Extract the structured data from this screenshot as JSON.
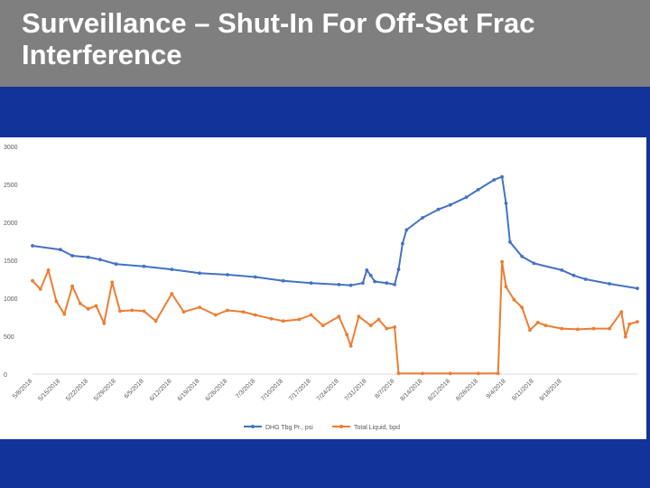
{
  "slide": {
    "title": "Surveillance – Shut-In For Off-Set Frac Interference"
  },
  "colors": {
    "title_bar": "#7f7f7f",
    "background": "#123399",
    "series_tubing": "#4472c4",
    "series_liquid": "#ed7d31"
  },
  "chart_data": {
    "type": "line",
    "title": "",
    "xlabel": "",
    "ylabel": "",
    "ylim": [
      0,
      3000
    ],
    "y_ticks": [
      0,
      500,
      1000,
      1500,
      2000,
      2500,
      3000
    ],
    "y_tick_labels": [
      "0",
      "500",
      "1000",
      "1500",
      "2000",
      "2500",
      "3000"
    ],
    "x_tick_labels": [
      "5/8/2018",
      "5/15/2018",
      "5/22/2018",
      "5/29/2018",
      "6/5/2018",
      "6/12/2018",
      "6/19/2018",
      "6/26/2018",
      "7/3/2018",
      "7/10/2018",
      "7/17/2018",
      "7/24/2018",
      "7/31/2018",
      "8/7/2018",
      "8/14/2018",
      "8/21/2018",
      "8/28/2018",
      "9/4/2018",
      "9/11/2018",
      "9/18/2018"
    ],
    "x_range": [
      "5/8/2018",
      "9/25/2018"
    ],
    "grid": false,
    "legend_position": "bottom",
    "series": [
      {
        "name": "DHG Tbg Pr., psi",
        "points": [
          [
            "5/8/2018",
            1690
          ],
          [
            "5/15/2018",
            1640
          ],
          [
            "5/18/2018",
            1560
          ],
          [
            "5/22/2018",
            1540
          ],
          [
            "5/25/2018",
            1510
          ],
          [
            "5/29/2018",
            1450
          ],
          [
            "6/5/2018",
            1420
          ],
          [
            "6/12/2018",
            1380
          ],
          [
            "6/19/2018",
            1330
          ],
          [
            "6/26/2018",
            1310
          ],
          [
            "7/3/2018",
            1280
          ],
          [
            "7/10/2018",
            1230
          ],
          [
            "7/17/2018",
            1200
          ],
          [
            "7/24/2018",
            1180
          ],
          [
            "7/27/2018",
            1170
          ],
          [
            "7/30/2018",
            1200
          ],
          [
            "7/31/2018",
            1370
          ],
          [
            "8/1/2018",
            1300
          ],
          [
            "8/2/2018",
            1220
          ],
          [
            "8/5/2018",
            1200
          ],
          [
            "8/7/2018",
            1180
          ],
          [
            "8/8/2018",
            1380
          ],
          [
            "8/9/2018",
            1720
          ],
          [
            "8/10/2018",
            1900
          ],
          [
            "8/14/2018",
            2060
          ],
          [
            "8/18/2018",
            2170
          ],
          [
            "8/21/2018",
            2230
          ],
          [
            "8/25/2018",
            2330
          ],
          [
            "8/28/2018",
            2430
          ],
          [
            "9/1/2018",
            2560
          ],
          [
            "9/3/2018",
            2600
          ],
          [
            "9/4/2018",
            2250
          ],
          [
            "9/5/2018",
            1740
          ],
          [
            "9/8/2018",
            1550
          ],
          [
            "9/11/2018",
            1460
          ],
          [
            "9/18/2018",
            1370
          ],
          [
            "9/21/2018",
            1300
          ],
          [
            "9/24/2018",
            1250
          ],
          [
            "9/30/2018",
            1190
          ],
          [
            "10/7/2018",
            1130
          ]
        ]
      },
      {
        "name": "Total Liquid, bpd",
        "points": [
          [
            "5/8/2018",
            1230
          ],
          [
            "5/10/2018",
            1120
          ],
          [
            "5/12/2018",
            1370
          ],
          [
            "5/14/2018",
            960
          ],
          [
            "5/16/2018",
            790
          ],
          [
            "5/18/2018",
            1160
          ],
          [
            "5/20/2018",
            930
          ],
          [
            "5/22/2018",
            860
          ],
          [
            "5/24/2018",
            900
          ],
          [
            "5/26/2018",
            670
          ],
          [
            "5/28/2018",
            1210
          ],
          [
            "5/30/2018",
            830
          ],
          [
            "6/2/2018",
            840
          ],
          [
            "6/5/2018",
            830
          ],
          [
            "6/8/2018",
            700
          ],
          [
            "6/12/2018",
            1060
          ],
          [
            "6/15/2018",
            820
          ],
          [
            "6/19/2018",
            880
          ],
          [
            "6/23/2018",
            780
          ],
          [
            "6/26/2018",
            840
          ],
          [
            "6/30/2018",
            820
          ],
          [
            "7/3/2018",
            780
          ],
          [
            "7/7/2018",
            730
          ],
          [
            "7/10/2018",
            700
          ],
          [
            "7/14/2018",
            720
          ],
          [
            "7/17/2018",
            780
          ],
          [
            "7/20/2018",
            640
          ],
          [
            "7/24/2018",
            760
          ],
          [
            "7/26/2018",
            520
          ],
          [
            "7/27/2018",
            370
          ],
          [
            "7/29/2018",
            760
          ],
          [
            "8/1/2018",
            640
          ],
          [
            "8/3/2018",
            720
          ],
          [
            "8/5/2018",
            600
          ],
          [
            "8/7/2018",
            620
          ],
          [
            "8/8/2018",
            10
          ],
          [
            "8/14/2018",
            8
          ],
          [
            "8/21/2018",
            8
          ],
          [
            "8/28/2018",
            8
          ],
          [
            "9/2/2018",
            10
          ],
          [
            "9/3/2018",
            1480
          ],
          [
            "9/4/2018",
            1150
          ],
          [
            "9/6/2018",
            980
          ],
          [
            "9/8/2018",
            880
          ],
          [
            "9/10/2018",
            580
          ],
          [
            "9/12/2018",
            680
          ],
          [
            "9/14/2018",
            640
          ],
          [
            "9/18/2018",
            600
          ],
          [
            "9/22/2018",
            590
          ],
          [
            "9/26/2018",
            600
          ],
          [
            "9/30/2018",
            600
          ],
          [
            "10/3/2018",
            820
          ],
          [
            "10/4/2018",
            490
          ],
          [
            "10/5/2018",
            660
          ],
          [
            "10/7/2018",
            690
          ]
        ]
      }
    ]
  }
}
